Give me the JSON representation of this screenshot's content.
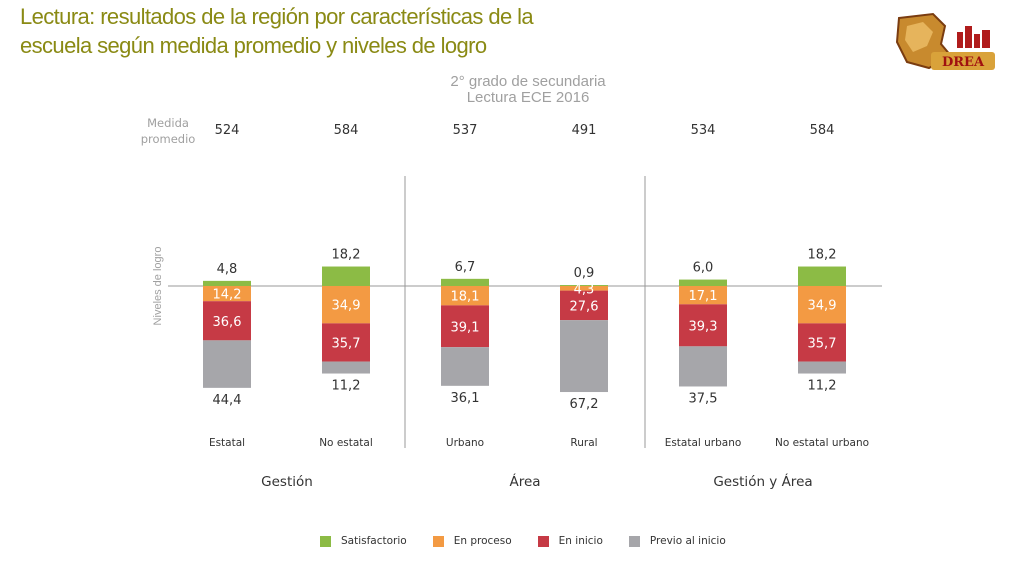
{
  "slide": {
    "title_line1": "Lectura: resultados de la región por características de la",
    "title_line2": "escuela según medida promedio y niveles de   logro"
  },
  "logo": {
    "text": "DREA"
  },
  "chart_data": {
    "type": "bar",
    "stacked": "diverging",
    "title": "2° grado de secundaria",
    "subtitle": "Lectura ECE 2016",
    "measure_label": [
      "Medida",
      "promedio"
    ],
    "ylabel": "Niveles de logro",
    "categories": [
      "Estatal",
      "No estatal",
      "Urbano",
      "Rural",
      "Estatal urbano",
      "No estatal urbano"
    ],
    "groups": [
      {
        "name": "Gestión",
        "categories": [
          "Estatal",
          "No estatal"
        ]
      },
      {
        "name": "Área",
        "categories": [
          "Urbano",
          "Rural"
        ]
      },
      {
        "name": "Gestión y Área",
        "categories": [
          "Estatal urbano",
          "No estatal urbano"
        ]
      }
    ],
    "average_measure": [
      "524",
      "584",
      "537",
      "491",
      "534",
      "584"
    ],
    "series": [
      {
        "name": "Satisfactorio",
        "color": "#8cbb45",
        "values": [
          4.8,
          18.2,
          6.7,
          0.9,
          6.0,
          18.2
        ],
        "labels": [
          "4,8",
          "18,2",
          "6,7",
          "0,9",
          "6,0",
          "18,2"
        ]
      },
      {
        "name": "En proceso",
        "color": "#f39a43",
        "values": [
          14.2,
          34.9,
          18.1,
          4.3,
          17.1,
          34.9
        ],
        "labels": [
          "14,2",
          "34,9",
          "18,1",
          "4,3",
          "17,1",
          "34,9"
        ]
      },
      {
        "name": "En inicio",
        "color": "#c63a45",
        "values": [
          36.6,
          35.7,
          39.1,
          27.6,
          39.3,
          35.7
        ],
        "labels": [
          "36,6",
          "35,7",
          "39,1",
          "27,6",
          "39,3",
          "35,7"
        ]
      },
      {
        "name": "Previo al inicio",
        "color": "#a6a6aa",
        "values": [
          44.4,
          11.2,
          36.1,
          67.2,
          37.5,
          11.2
        ],
        "labels": [
          "44,4",
          "11,2",
          "36,1",
          "67,2",
          "37,5",
          "11,2"
        ]
      }
    ]
  }
}
